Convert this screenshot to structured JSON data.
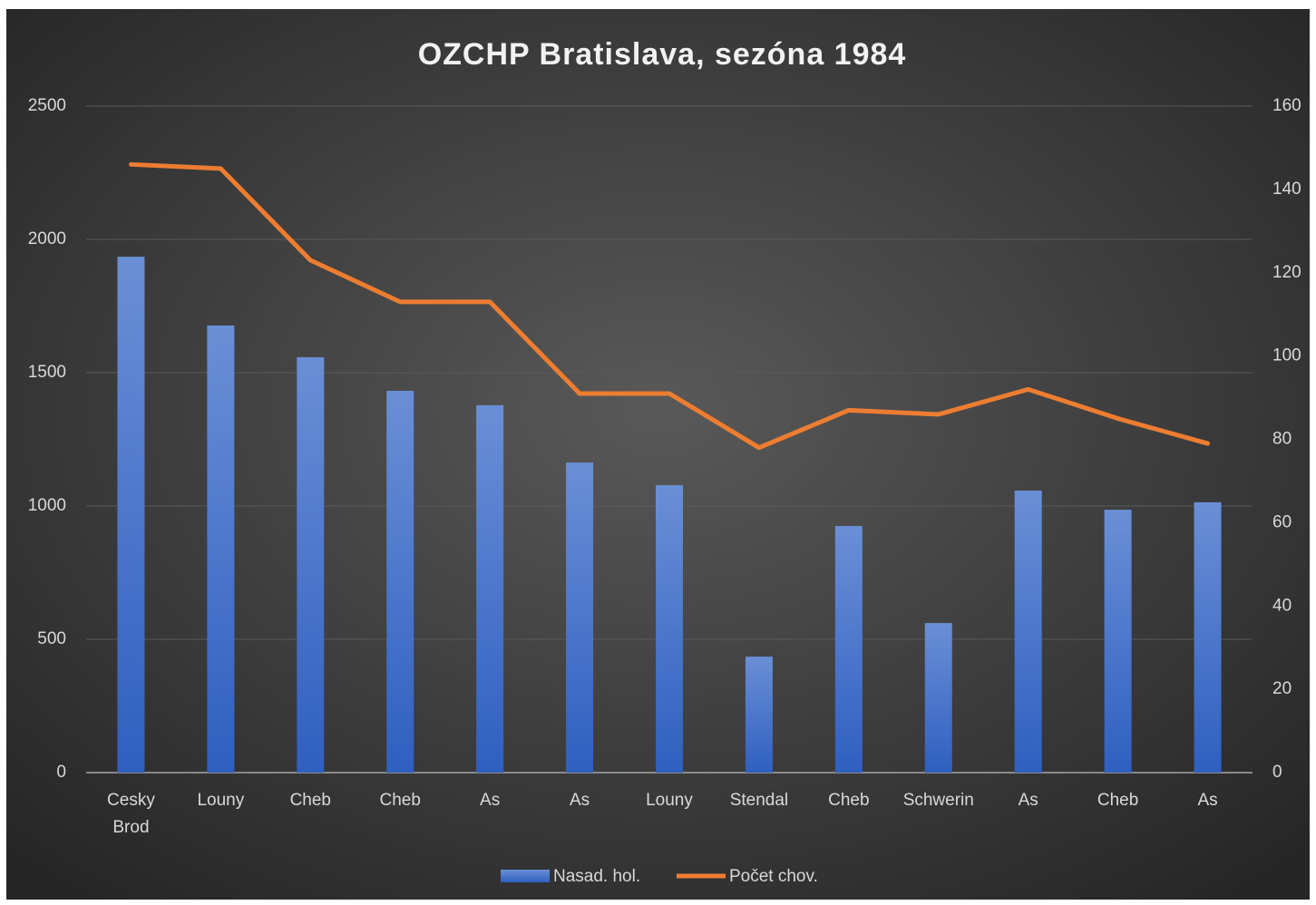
{
  "chart_data": {
    "type": "bar_line",
    "title": "OZCHP Bratislava, sezóna 1984",
    "categories": [
      "Cesky Brod",
      "Louny",
      "Cheb",
      "Cheb",
      "As",
      "As",
      "Louny",
      "Stendal",
      "Cheb",
      "Schwerin",
      "As",
      "Cheb",
      "As"
    ],
    "series": [
      {
        "name": "Nasad. hol.",
        "type": "bar",
        "color": "#4472c4",
        "values": [
          1935,
          1677,
          1558,
          1432,
          1378,
          1163,
          1078,
          435,
          925,
          561,
          1058,
          986,
          1014
        ]
      },
      {
        "name": "Počet chov.",
        "type": "line",
        "axis": "y2",
        "color": "#ed7d31",
        "values": [
          146,
          145,
          123,
          113,
          113,
          91,
          91,
          78,
          87,
          86,
          92,
          85,
          79
        ]
      }
    ],
    "ylim": [
      0,
      2500
    ],
    "yticks": [
      0,
      500,
      1000,
      1500,
      2000,
      2500
    ],
    "y2lim": [
      0,
      160
    ],
    "y2ticks": [
      0,
      20,
      40,
      60,
      80,
      100,
      120,
      140,
      160
    ],
    "grid": true,
    "legend": "bottom"
  }
}
